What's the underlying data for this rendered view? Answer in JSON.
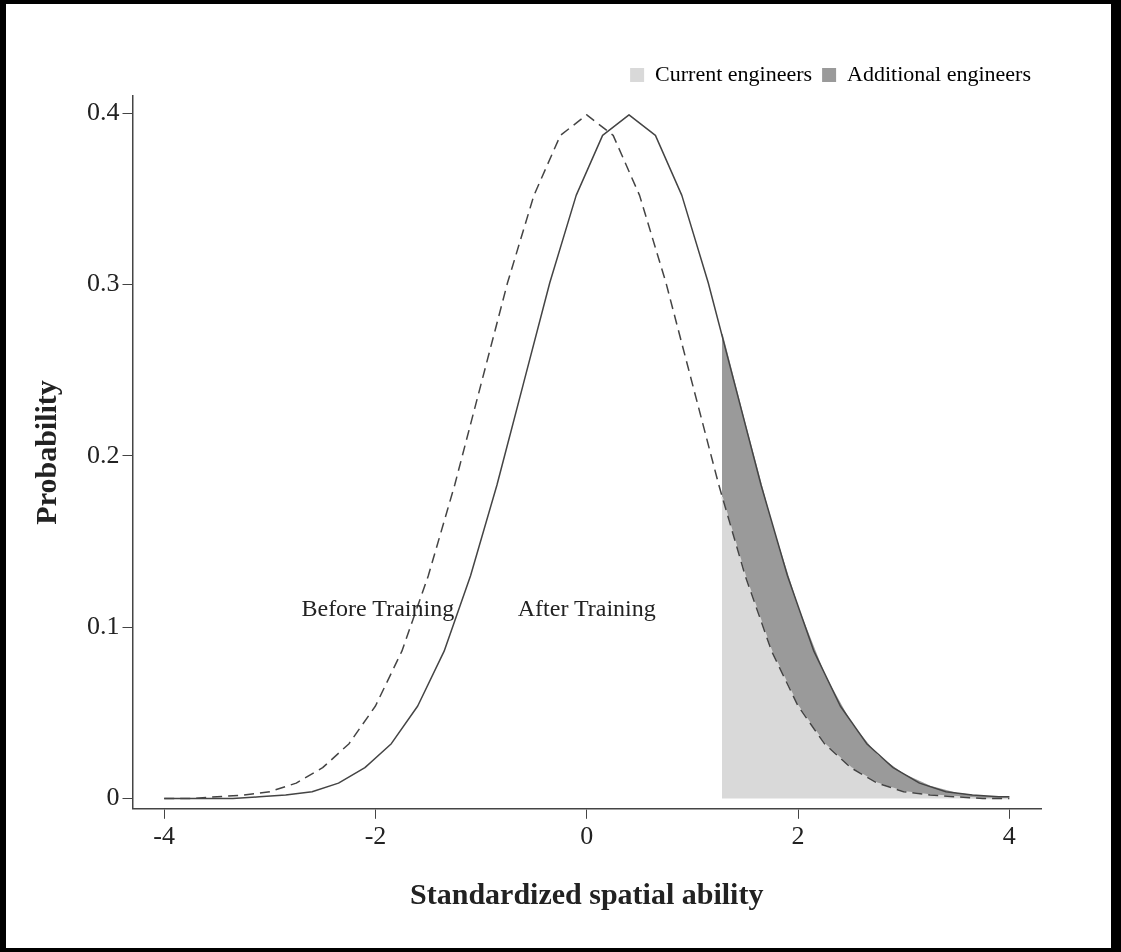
{
  "chart_data": {
    "type": "line",
    "xlabel": "Standardized spatial ability",
    "ylabel": "Probability",
    "xlim": [
      -4.3,
      4.3
    ],
    "ylim": [
      -0.006,
      0.41
    ],
    "xticks": [
      -4,
      -2,
      0,
      2,
      4
    ],
    "yticks": [
      0,
      0.1,
      0.2,
      0.3,
      0.4
    ],
    "grid": false,
    "legend": "top right",
    "marker": "none",
    "stacked": true,
    "series": [
      {
        "type": "area",
        "name": "Current engineers",
        "color": "#d9d9d9",
        "x": [
          1.28,
          1.5,
          1.75,
          2,
          2.25,
          2.5,
          2.75,
          3,
          3.25,
          3.5,
          3.75,
          4
        ],
        "values": [
          0.176,
          0.13,
          0.086,
          0.054,
          0.032,
          0.018,
          0.009,
          0.004,
          0.002,
          0.001,
          0,
          0
        ]
      },
      {
        "type": "area",
        "name": "Additional engineers",
        "color": "#9a9a9a",
        "x": [
          1.28,
          1.5,
          1.75,
          2,
          2.25,
          2.5,
          2.75,
          3,
          3.25,
          3.5,
          3.75,
          4
        ],
        "values": [
          0.095,
          0.088,
          0.074,
          0.057,
          0.04,
          0.026,
          0.016,
          0.01,
          0.005,
          0.002,
          0.001,
          0.001
        ]
      },
      {
        "type": "line",
        "color": "#444444",
        "line_style": "dashed",
        "x": [
          -4,
          -3.75,
          -3.5,
          -3.25,
          -3,
          -2.75,
          -2.5,
          -2.25,
          -2,
          -1.75,
          -1.5,
          -1.25,
          -1,
          -0.75,
          -0.5,
          -0.25,
          0,
          0.25,
          0.5,
          0.75,
          1,
          1.25,
          1.5,
          1.75,
          2,
          2.25,
          2.5,
          2.75,
          3,
          3.25,
          3.5,
          3.75,
          4
        ],
        "values": [
          0,
          0,
          0.001,
          0.002,
          0.004,
          0.009,
          0.018,
          0.032,
          0.054,
          0.086,
          0.13,
          0.183,
          0.242,
          0.301,
          0.352,
          0.387,
          0.399,
          0.387,
          0.352,
          0.301,
          0.242,
          0.183,
          0.13,
          0.086,
          0.054,
          0.032,
          0.018,
          0.009,
          0.004,
          0.002,
          0.001,
          0,
          0
        ]
      },
      {
        "type": "line",
        "color": "#444444",
        "line_style": "solid",
        "x": [
          -4,
          -3.6,
          -3.35,
          -3.1,
          -2.85,
          -2.6,
          -2.35,
          -2.1,
          -1.85,
          -1.6,
          -1.35,
          -1.1,
          -0.85,
          -0.6,
          -0.35,
          -0.1,
          0.15,
          0.4,
          0.65,
          0.9,
          1.15,
          1.4,
          1.65,
          1.9,
          2.15,
          2.4,
          2.65,
          2.9,
          3.15,
          3.4,
          3.65,
          3.9,
          4
        ],
        "values": [
          0,
          0,
          0,
          0.001,
          0.002,
          0.004,
          0.009,
          0.018,
          0.032,
          0.054,
          0.086,
          0.13,
          0.183,
          0.242,
          0.301,
          0.352,
          0.387,
          0.399,
          0.387,
          0.352,
          0.301,
          0.242,
          0.183,
          0.13,
          0.086,
          0.054,
          0.032,
          0.018,
          0.009,
          0.004,
          0.002,
          0.001,
          0.001
        ]
      }
    ],
    "annotations": [
      "Before Training",
      "After Training"
    ]
  }
}
